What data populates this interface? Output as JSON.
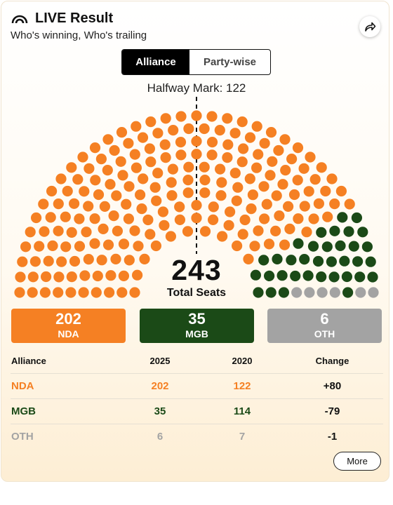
{
  "header": {
    "title": "LIVE Result",
    "subtitle": "Who's winning, Who's trailing",
    "live_icon": "live-signal-icon",
    "share_icon": "share-icon"
  },
  "toggle": {
    "options": [
      "Alliance",
      "Party-wise"
    ],
    "active": "Alliance"
  },
  "halfway_label": "Halfway Mark: 122",
  "total": {
    "value": "243",
    "label": "Total Seats"
  },
  "alliances": [
    {
      "name": "NDA",
      "seats": "202",
      "color": "#f58023",
      "text_color": "#f58023"
    },
    {
      "name": "MGB",
      "seats": "35",
      "color": "#1b4a17",
      "text_color": "#1b4a17"
    },
    {
      "name": "OTH",
      "seats": "6",
      "color": "#a3a3a3",
      "text_color": "#a3a3a3"
    }
  ],
  "table": {
    "headers": [
      "Alliance",
      "2025",
      "2020",
      "Change"
    ],
    "rows": [
      [
        "NDA",
        "202",
        "122",
        "+80"
      ],
      [
        "MGB",
        "35",
        "114",
        "-79"
      ],
      [
        "OTH",
        "6",
        "7",
        "-1"
      ]
    ]
  },
  "more_label": "More"
}
